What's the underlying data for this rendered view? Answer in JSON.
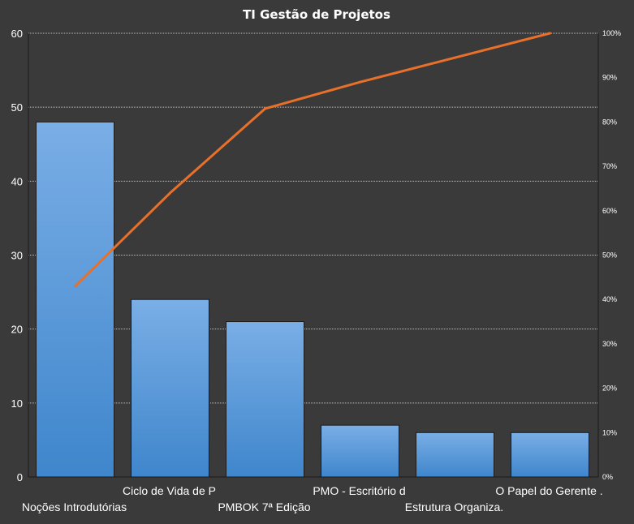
{
  "chart_data": {
    "type": "bar",
    "title": "TI Gestão  de Projetos",
    "categories": [
      "Noções Introdutórias",
      "Ciclo de Vida de P",
      "PMBOK 7ª Edição",
      "PMO - Escritório d",
      "Estrutura  Organiza.",
      "O Papel do Gerente ."
    ],
    "series": [
      {
        "type": "bar",
        "values": [
          48,
          24,
          21,
          7,
          6,
          6
        ]
      },
      {
        "type": "line",
        "axis": "secondary",
        "values": [
          43,
          64,
          83,
          89,
          94.5,
          100
        ]
      }
    ],
    "ylim": [
      0,
      60
    ],
    "yticks": [
      "0",
      "10",
      "20",
      "30",
      "40",
      "50",
      "60"
    ],
    "y2lim": [
      0,
      100
    ],
    "y2ticks": [
      "0%",
      "10%",
      "20%",
      "30%",
      "40%",
      "50%",
      "60%",
      "70%",
      "80%",
      "90%",
      "100%"
    ],
    "grid": true,
    "legend": "none",
    "colors": {
      "background": "#3a3a3a",
      "bar_top": "#7aaee6",
      "bar_bottom": "#3f86cc",
      "bar_stroke": "#1a1a1a",
      "line": "#e8702a",
      "text": "#ffffff",
      "gridline": "#bfbfbf"
    }
  }
}
